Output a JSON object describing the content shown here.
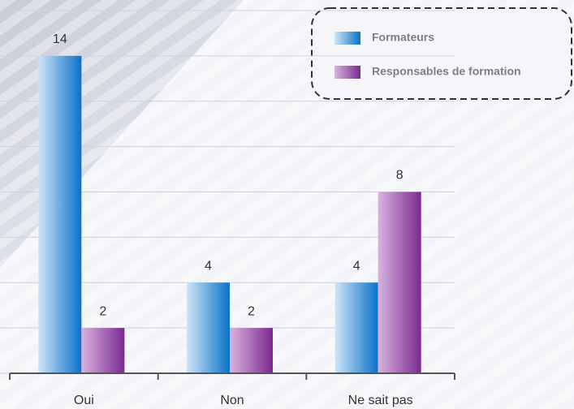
{
  "chart_data": {
    "type": "bar",
    "categories": [
      "Oui",
      "Non",
      "Ne sait pas"
    ],
    "series": [
      {
        "name": "Formateurs",
        "color": "#0a72c8",
        "values": [
          14,
          4,
          4
        ]
      },
      {
        "name": "Responsables de formation",
        "color": "#7a2a8e",
        "values": [
          2,
          2,
          8
        ]
      }
    ],
    "ylim": [
      0,
      16
    ],
    "yticks": [
      0,
      2,
      4,
      6,
      8,
      10,
      12,
      14,
      16
    ],
    "grid": true,
    "legend": "top-right"
  }
}
